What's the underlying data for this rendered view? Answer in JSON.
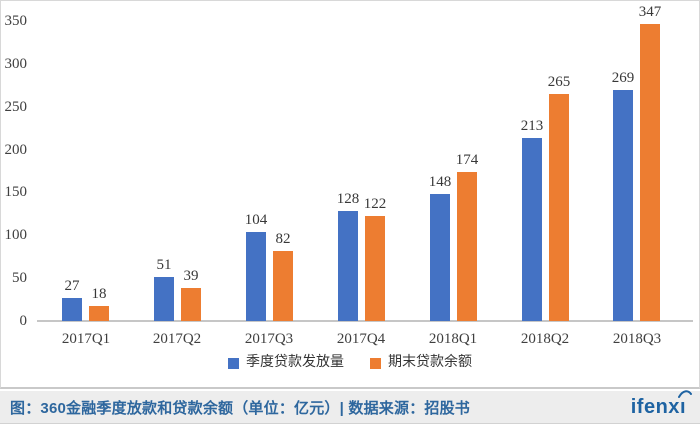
{
  "chart_data": {
    "type": "bar",
    "categories": [
      "2017Q1",
      "2017Q2",
      "2017Q3",
      "2017Q4",
      "2018Q1",
      "2018Q2",
      "2018Q3"
    ],
    "series": [
      {
        "name": "季度贷款发放量",
        "color": "#4472C4",
        "values": [
          27,
          51,
          104,
          128,
          148,
          213,
          269
        ]
      },
      {
        "name": "期末贷款余额",
        "color": "#ED7D31",
        "values": [
          18,
          39,
          82,
          122,
          174,
          265,
          347
        ]
      }
    ],
    "ylim": [
      0,
      350
    ],
    "yticks": [
      0,
      50,
      100,
      150,
      200,
      250,
      300,
      350
    ],
    "grid": false,
    "legend_position": "bottom",
    "value_labels": true,
    "xlabel": "",
    "ylabel": ""
  },
  "footer": {
    "caption": "图：360金融季度放款和贷款余额（单位：亿元）| 数据来源：招股书",
    "logo_text": "ifenxi"
  },
  "colors": {
    "series_blue": "#4472C4",
    "series_orange": "#ED7D31",
    "axis_line": "#C6C6C6",
    "chart_text": "#3F3F3F",
    "footer_bg": "#EDEDED",
    "footer_text": "#2E679E",
    "logo_blue": "#1E63A2",
    "card_border": "#D8D8D8"
  }
}
